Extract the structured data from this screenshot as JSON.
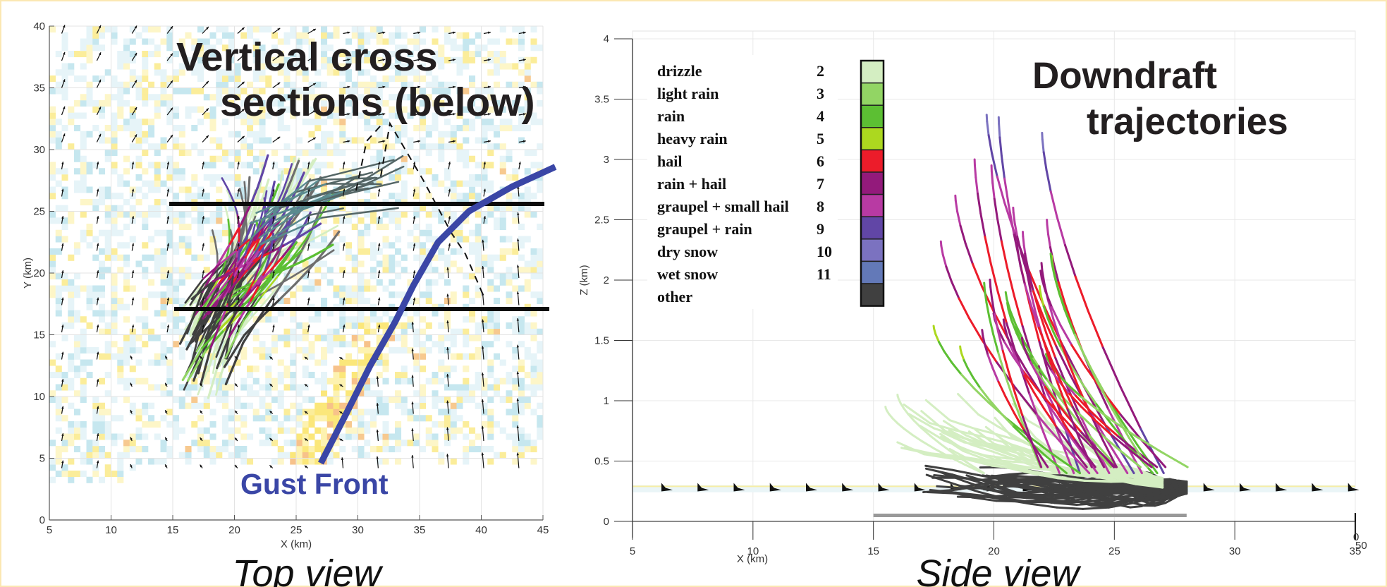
{
  "left_panel": {
    "title_line1": "Vertical cross",
    "title_line2": "sections (below)",
    "caption": "Top view",
    "gust_front_label": "Gust Front",
    "gust_front_color": "#3a46a6",
    "xlabel": "X (km)",
    "ylabel": "Y (km)"
  },
  "right_panel": {
    "title_line1": "Downdraft",
    "title_line2": "trajectories",
    "caption": "Side view",
    "xlabel": "X (km)",
    "ylabel": "Z (km)",
    "corner_labels": [
      "0",
      "50"
    ]
  },
  "legend": {
    "items": [
      {
        "label": "drizzle",
        "code": "2",
        "color": "#d4eec2"
      },
      {
        "label": "light rain",
        "code": "3",
        "color": "#92d564"
      },
      {
        "label": "rain",
        "code": "4",
        "color": "#5cbf33"
      },
      {
        "label": "heavy rain",
        "code": "5",
        "color": "#acd81f"
      },
      {
        "label": "hail",
        "code": "6",
        "color": "#ec1c2a"
      },
      {
        "label": "rain + hail",
        "code": "7",
        "color": "#931a7b"
      },
      {
        "label": "graupel + small hail",
        "code": "8",
        "color": "#b83aa3"
      },
      {
        "label": "graupel + rain",
        "code": "9",
        "color": "#6146a6"
      },
      {
        "label": "dry snow",
        "code": "10",
        "color": "#7b72c0"
      },
      {
        "label": "wet snow",
        "code": "11",
        "color": "#6379b8"
      },
      {
        "label": "other",
        "code": "",
        "color": "#404040"
      }
    ]
  },
  "chart_data": [
    {
      "type": "scatter",
      "title": "Vertical cross sections (below)",
      "subtitle": "Top view",
      "xlabel": "X (km)",
      "ylabel": "Y (km)",
      "xlim": [
        5,
        45
      ],
      "ylim": [
        0,
        40
      ],
      "xticks": [
        5,
        10,
        15,
        20,
        25,
        30,
        35,
        40,
        45
      ],
      "yticks": [
        0,
        5,
        10,
        15,
        20,
        25,
        30,
        35,
        40
      ],
      "grid": true,
      "annotations": [
        {
          "text": "Gust Front",
          "x": 27,
          "y": 3
        },
        {
          "type": "hline",
          "label": "cross section 1",
          "y": 25.7,
          "x": [
            15,
            45
          ]
        },
        {
          "type": "hline",
          "label": "cross section 2",
          "y": 17.0,
          "x": [
            15.5,
            45.5
          ]
        }
      ],
      "gust_front_line": {
        "x": [
          27,
          29,
          31,
          33,
          34.5,
          36.5,
          39,
          42.5,
          46
        ],
        "y": [
          4.6,
          8.5,
          12.5,
          16.0,
          19.0,
          22.5,
          25.0,
          27.0,
          28.6
        ]
      },
      "layers": [
        "horizontal wind vectors (arrows)",
        "vertical velocity shading (blue negative / yellow-orange positive)",
        "downdraft trajectories colored by hydrometeor class"
      ]
    },
    {
      "type": "line",
      "title": "Downdraft trajectories",
      "subtitle": "Side view",
      "xlabel": "X (km)",
      "ylabel": "Z (km)",
      "xlim": [
        5,
        35
      ],
      "ylim": [
        0,
        4
      ],
      "xticks": [
        5,
        10,
        15,
        20,
        25,
        30,
        35
      ],
      "yticks": [
        0,
        0.5,
        1,
        1.5,
        2,
        2.5,
        3,
        3.5,
        4
      ],
      "grid": true,
      "legend_position": "upper left",
      "series_summary": {
        "trajectory_start_heights_km": [
          3.37,
          3.35,
          3.22,
          3.0,
          2.95,
          2.7,
          2.6,
          2.5,
          2.4,
          2.32,
          2.2,
          1.95,
          1.62,
          1.45,
          1.05,
          0.95
        ],
        "trajectory_start_x_km": [
          19.7,
          20.2,
          22.0,
          19.2,
          19.9,
          18.4,
          20.8,
          22.2,
          21.2,
          17.8,
          22.4,
          21.9,
          17.5,
          18.6,
          16.0,
          15.5
        ],
        "convergence_point": {
          "x": 28.0,
          "z": 0.28
        },
        "surface_layer_z_km": 0.28,
        "ground_bar": {
          "x": [
            15,
            28
          ],
          "z": 0.05
        }
      }
    }
  ]
}
